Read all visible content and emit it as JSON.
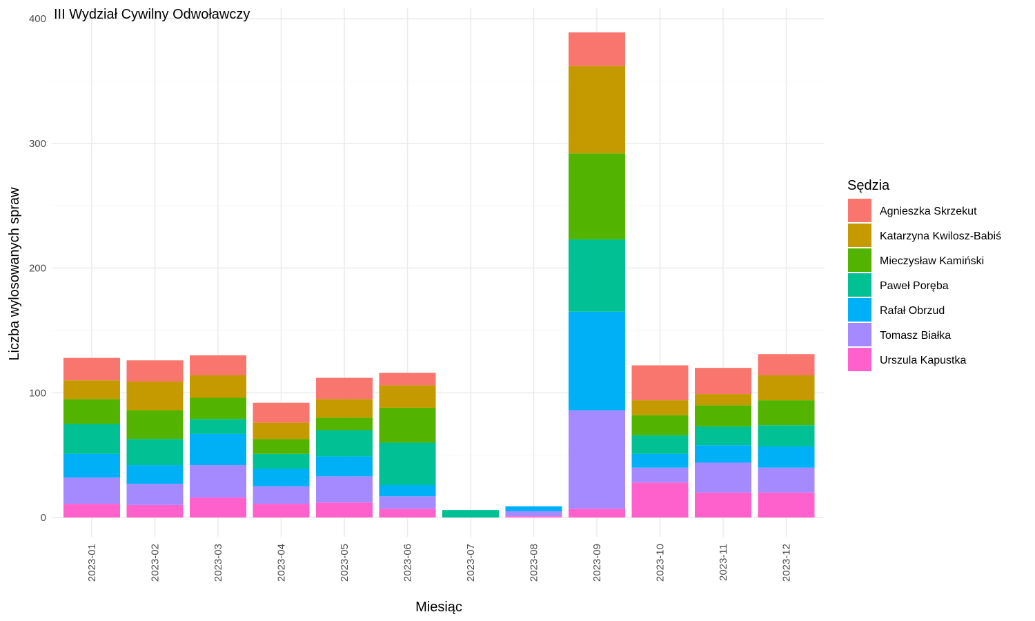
{
  "chart_data": {
    "type": "bar",
    "stacked": true,
    "title": "III Wydział Cywilny Odwoławczy",
    "xlabel": "Miesiąc",
    "ylabel": "Liczba wylosowanych spraw",
    "ylim": [
      0,
      400
    ],
    "yticks": [
      "0",
      "100",
      "200",
      "300",
      "400"
    ],
    "grid": true,
    "legend_title": "Sędzia",
    "legend_position": "right",
    "categories": [
      "2023-01",
      "2023-02",
      "2023-03",
      "2023-04",
      "2023-05",
      "2023-06",
      "2023-07",
      "2023-08",
      "2023-09",
      "2023-10",
      "2023-11",
      "2023-12"
    ],
    "series": [
      {
        "name": "Urszula Kapustka",
        "color": "#FF61CC",
        "values": [
          11,
          10,
          16,
          11,
          12,
          7,
          0,
          1,
          7,
          28,
          20,
          20
        ]
      },
      {
        "name": "Tomasz Białka",
        "color": "#A58AFF",
        "values": [
          21,
          17,
          26,
          14,
          21,
          10,
          0,
          4,
          79,
          12,
          24,
          20
        ]
      },
      {
        "name": "Rafał Obrzud",
        "color": "#00B0F6",
        "values": [
          19,
          15,
          25,
          14,
          16,
          9,
          0,
          4,
          79,
          11,
          14,
          17
        ]
      },
      {
        "name": "Paweł Poręba",
        "color": "#00C094",
        "values": [
          24,
          21,
          12,
          12,
          21,
          34,
          6,
          0,
          58,
          15,
          15,
          17
        ]
      },
      {
        "name": "Mieczysław Kamiński",
        "color": "#53B400",
        "values": [
          20,
          23,
          17,
          12,
          10,
          28,
          0,
          0,
          69,
          16,
          17,
          20
        ]
      },
      {
        "name": "Katarzyna Kwilosz-Babiś",
        "color": "#C49A00",
        "values": [
          15,
          23,
          18,
          13,
          15,
          18,
          0,
          0,
          70,
          12,
          9,
          20
        ]
      },
      {
        "name": "Agnieszka Skrzekut",
        "color": "#F8766D",
        "values": [
          18,
          17,
          16,
          16,
          17,
          10,
          0,
          0,
          27,
          28,
          21,
          17
        ]
      }
    ],
    "legend_order": [
      "Agnieszka Skrzekut",
      "Katarzyna Kwilosz-Babiś",
      "Mieczysław Kamiński",
      "Paweł Poręba",
      "Rafał Obrzud",
      "Tomasz Białka",
      "Urszula Kapustka"
    ]
  }
}
